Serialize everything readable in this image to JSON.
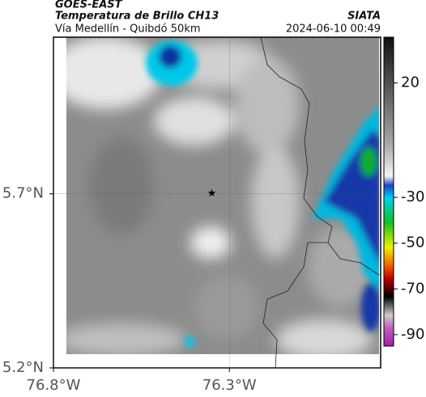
{
  "header": {
    "source": "GOES-EAST",
    "title": "Temperatura de Brillo CH13",
    "subtitle": "Vía Medellín - Quibdó 50km",
    "brand": "SIATA",
    "timestamp": "2024-06-10 00:49"
  },
  "map": {
    "xlim": [
      -76.8,
      -75.87
    ],
    "ylim": [
      5.2,
      6.15
    ],
    "xticks": [
      {
        "value": -76.8,
        "label": "76.8°W"
      },
      {
        "value": -76.3,
        "label": "76.3°W"
      }
    ],
    "yticks": [
      {
        "value": 5.7,
        "label": "5.7°N"
      },
      {
        "value": 5.2,
        "label": "5.2°N"
      }
    ],
    "grid": true,
    "marker": {
      "lon": -76.35,
      "lat": 5.7
    }
  },
  "colorbar": {
    "lim": [
      40,
      -95
    ],
    "ticks": [
      20,
      -30,
      -50,
      -70,
      -90
    ]
  }
}
